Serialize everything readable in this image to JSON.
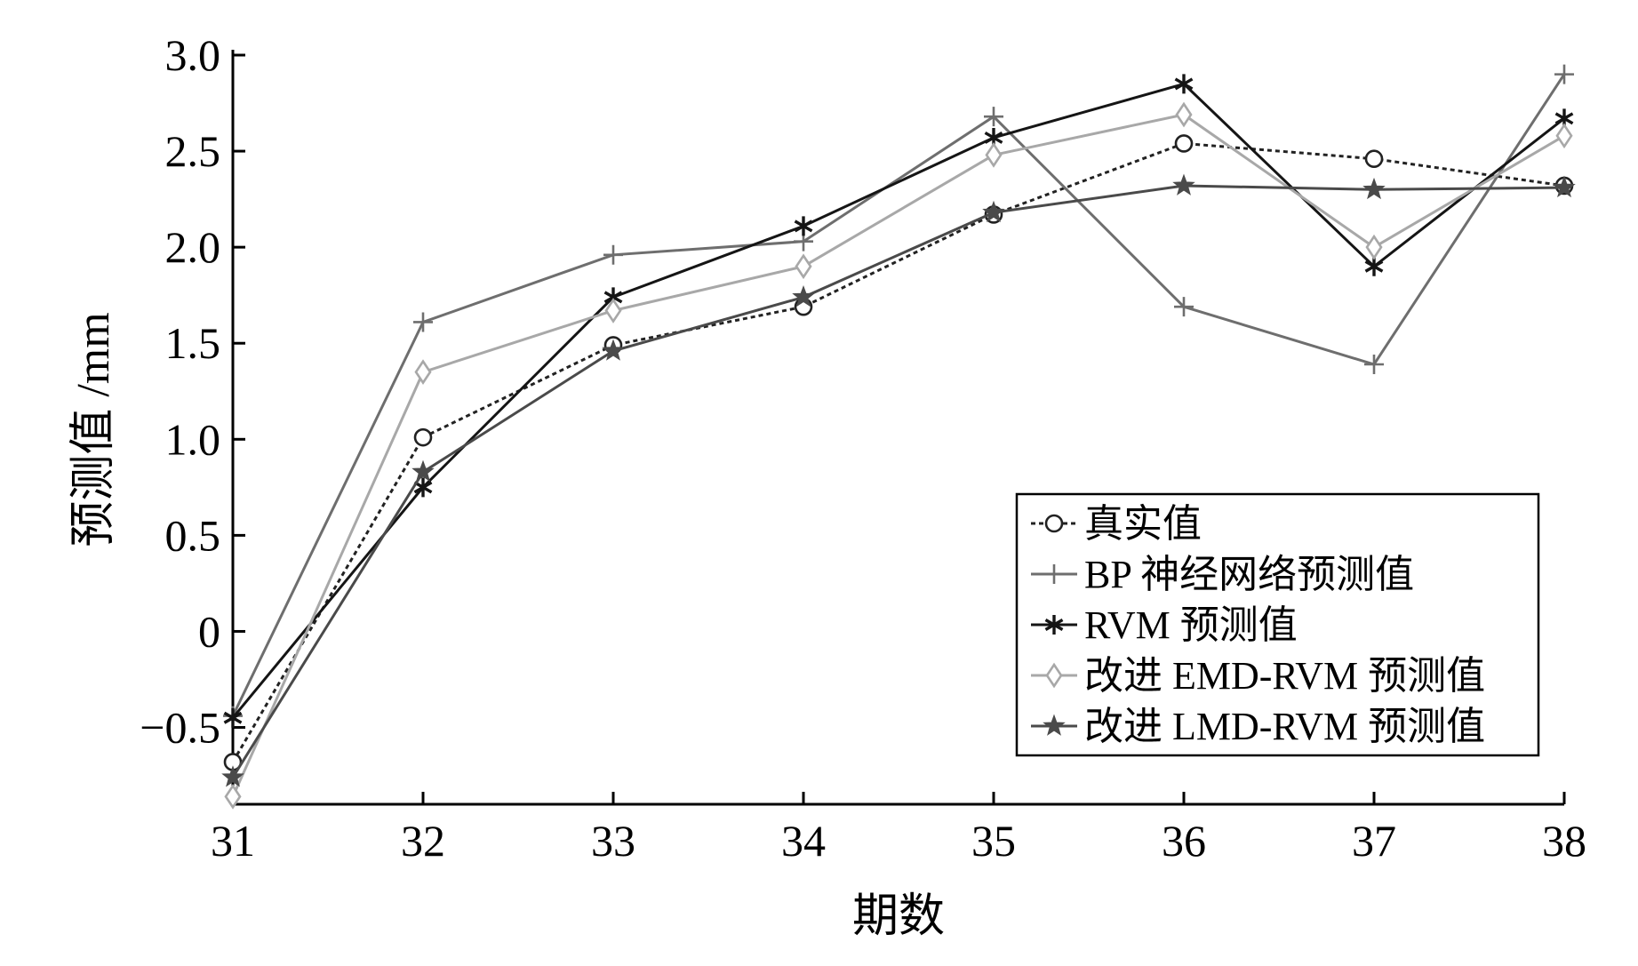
{
  "chart_data": {
    "type": "line",
    "xlabel": "期数",
    "ylabel": "预测值 /mm",
    "x": [
      31,
      32,
      33,
      34,
      35,
      36,
      37,
      38
    ],
    "xlim": [
      31,
      38
    ],
    "ylim": [
      -0.9,
      3.0
    ],
    "xticks": [
      "31",
      "32",
      "33",
      "34",
      "35",
      "36",
      "37",
      "38"
    ],
    "yticks": [
      {
        "value": 3.0,
        "label": "3.0"
      },
      {
        "value": 2.5,
        "label": "2.5"
      },
      {
        "value": 2.0,
        "label": "2.0"
      },
      {
        "value": 1.5,
        "label": "1.5"
      },
      {
        "value": 1.0,
        "label": "1.0"
      },
      {
        "value": 0.5,
        "label": "0.5"
      },
      {
        "value": 0,
        "label": "0"
      },
      {
        "value": -0.5,
        "label": "−0.5"
      }
    ],
    "grid": false,
    "legend_position": "bottom-right",
    "series": [
      {
        "name": "真实值",
        "marker": "circle",
        "color": "#222222",
        "dashed": true,
        "values": [
          -0.68,
          1.01,
          1.49,
          1.69,
          2.17,
          2.54,
          2.46,
          2.32
        ]
      },
      {
        "name": "BP 神经网络预测值",
        "marker": "plus",
        "color": "#6e6e6e",
        "dashed": false,
        "values": [
          -0.44,
          1.61,
          1.96,
          2.03,
          2.68,
          1.69,
          1.39,
          2.9
        ]
      },
      {
        "name": "RVM 预测值",
        "marker": "asterisk",
        "color": "#151515",
        "dashed": false,
        "values": [
          -0.45,
          0.75,
          1.74,
          2.11,
          2.57,
          2.85,
          1.9,
          2.67
        ]
      },
      {
        "name": "改进 EMD-RVM 预测值",
        "marker": "diamond",
        "color": "#a8a8a8",
        "dashed": false,
        "values": [
          -0.86,
          1.35,
          1.67,
          1.9,
          2.48,
          2.69,
          2.0,
          2.58
        ]
      },
      {
        "name": "改进 LMD-RVM 预测值",
        "marker": "star",
        "color": "#4a4a4a",
        "dashed": false,
        "values": [
          -0.76,
          0.83,
          1.46,
          1.74,
          2.18,
          2.32,
          2.3,
          2.31
        ]
      }
    ]
  }
}
